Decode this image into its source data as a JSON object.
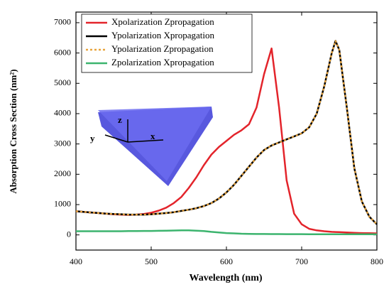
{
  "chart_data": {
    "type": "line",
    "xlabel": "Wavelength (nm)",
    "ylabel": "Absorption Cross Section (nm²)",
    "xlim": [
      400,
      800
    ],
    "xticks": [
      400,
      500,
      600,
      700,
      800
    ],
    "ylim": [
      -500,
      7350
    ],
    "yticks": [
      0,
      1000,
      2000,
      3000,
      4000,
      5000,
      6000,
      7000
    ],
    "legend": "upper left",
    "inset_labels": [
      "z",
      "y",
      "x"
    ],
    "x": [
      400,
      410,
      420,
      430,
      440,
      450,
      460,
      470,
      480,
      490,
      500,
      510,
      520,
      530,
      540,
      550,
      560,
      570,
      580,
      590,
      600,
      610,
      620,
      630,
      640,
      650,
      660,
      670,
      680,
      690,
      700,
      710,
      720,
      730,
      740,
      745,
      750,
      760,
      770,
      780,
      790,
      800
    ],
    "series": [
      {
        "name": "Xpolarization Zpropagation",
        "color": "#e3242b",
        "dash": "solid",
        "values": [
          780,
          760,
          740,
          720,
          700,
          680,
          670,
          660,
          670,
          690,
          730,
          800,
          900,
          1050,
          1250,
          1550,
          1900,
          2300,
          2650,
          2900,
          3100,
          3300,
          3450,
          3650,
          4200,
          5300,
          6150,
          4200,
          1800,
          700,
          350,
          200,
          150,
          120,
          100,
          95,
          90,
          80,
          70,
          60,
          55,
          50
        ]
      },
      {
        "name": "Ypolarization Xpropagation",
        "color": "#000000",
        "dash": "solid",
        "values": [
          780,
          760,
          740,
          720,
          700,
          690,
          680,
          670,
          670,
          670,
          680,
          700,
          720,
          750,
          790,
          830,
          880,
          950,
          1050,
          1200,
          1400,
          1650,
          1950,
          2250,
          2550,
          2800,
          2950,
          3050,
          3150,
          3250,
          3350,
          3550,
          4000,
          4900,
          6000,
          6400,
          6100,
          4200,
          2200,
          1100,
          600,
          350
        ]
      },
      {
        "name": "Ypolarization Zpropagation",
        "color": "#e8a33a",
        "dash": "dotted",
        "values": [
          780,
          760,
          740,
          720,
          700,
          690,
          680,
          670,
          670,
          670,
          680,
          700,
          720,
          750,
          790,
          830,
          880,
          950,
          1050,
          1200,
          1400,
          1650,
          1950,
          2250,
          2550,
          2800,
          2950,
          3050,
          3150,
          3250,
          3350,
          3550,
          4000,
          4900,
          6000,
          6400,
          6100,
          4200,
          2200,
          1100,
          600,
          350
        ]
      },
      {
        "name": "Zpolarization Xpropagation",
        "color": "#3cb46e",
        "dash": "solid",
        "values": [
          120,
          120,
          120,
          120,
          120,
          120,
          120,
          125,
          125,
          130,
          130,
          135,
          140,
          145,
          150,
          150,
          140,
          125,
          100,
          80,
          60,
          50,
          40,
          35,
          30,
          30,
          28,
          27,
          26,
          25,
          24,
          23,
          22,
          22,
          21,
          21,
          21,
          20,
          20,
          20,
          20,
          20
        ]
      }
    ]
  }
}
